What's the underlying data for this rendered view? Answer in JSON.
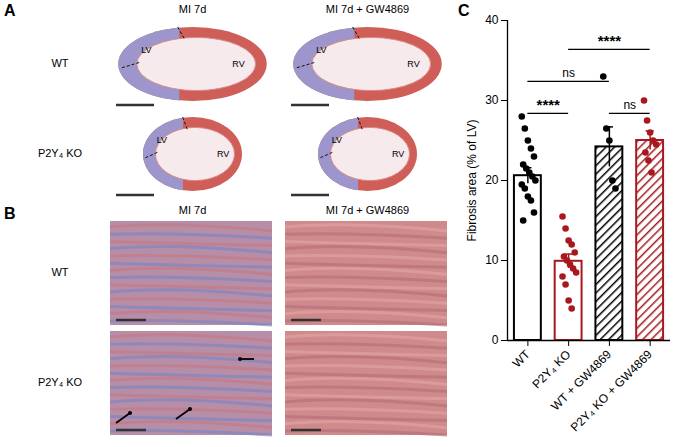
{
  "panels": {
    "A": {
      "label": "A",
      "columns": [
        "MI 7d",
        "MI 7d + GW4869"
      ],
      "rows": [
        "WT",
        "P2Y₄ KO"
      ],
      "image_labels": [
        "LV",
        "RV"
      ]
    },
    "B": {
      "label": "B",
      "columns": [
        "MI 7d",
        "MI 7d + GW4869"
      ],
      "rows": [
        "WT",
        "P2Y₄ KO"
      ]
    },
    "C": {
      "label": "C"
    }
  },
  "chart_data": {
    "type": "bar",
    "categories": [
      "WT",
      "P2Y₄ KO",
      "WT + GW4869",
      "P2Y₄ KO + GW4869"
    ],
    "values": [
      20.6,
      9.9,
      24.2,
      25.0
    ],
    "errors": [
      1.0,
      0.9,
      2.5,
      1.2
    ],
    "colors": [
      "#000000",
      "#a8191f",
      "#000000",
      "#a8191f"
    ],
    "points": [
      [
        28,
        26.5,
        25,
        24,
        23,
        22,
        21.5,
        21,
        20.5,
        20,
        19.5,
        19,
        18,
        17.5,
        16,
        15
      ],
      [
        15.5,
        14,
        12.5,
        12,
        11,
        10.5,
        10,
        9.5,
        9,
        8.5,
        8,
        7,
        5,
        4
      ],
      [
        33,
        26.5,
        25,
        20,
        19
      ],
      [
        30,
        27.5,
        26,
        25,
        24.5,
        23.5,
        22.5,
        21
      ]
    ],
    "comparisons": [
      {
        "from": "WT",
        "to": "P2Y₄ KO",
        "label": "****"
      },
      {
        "from": "WT + GW4869",
        "to": "P2Y₄ KO + GW4869",
        "label": "ns"
      },
      {
        "from": "WT",
        "to": "WT + GW4869",
        "label": "ns"
      },
      {
        "from": "P2Y₄ KO",
        "to": "P2Y₄ KO + GW4869",
        "label": "****"
      }
    ],
    "ylabel": "Fibrosis area (% of LV)",
    "ylim": [
      0,
      40
    ],
    "yticks": [
      0,
      10,
      20,
      30,
      40
    ]
  }
}
